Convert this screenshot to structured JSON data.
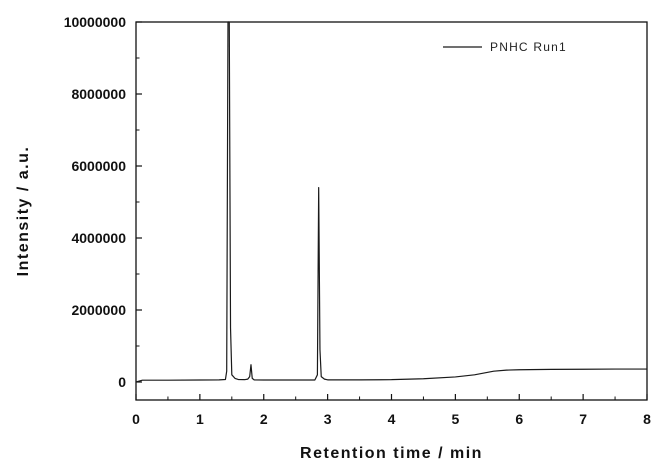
{
  "chart_data": {
    "type": "line",
    "xlabel": "Retention time / min",
    "ylabel": "Intensity / a.u.",
    "xlim": [
      0,
      8
    ],
    "ylim": [
      -500000,
      10000000
    ],
    "x_ticks": [
      0,
      1,
      2,
      3,
      4,
      5,
      6,
      7,
      8
    ],
    "x_tick_labels": [
      "0",
      "1",
      "2",
      "3",
      "4",
      "5",
      "6",
      "7",
      "8"
    ],
    "y_ticks": [
      0,
      2000000,
      4000000,
      6000000,
      8000000,
      10000000
    ],
    "y_tick_labels": [
      "0",
      "2000000",
      "4000000",
      "6000000",
      "8000000",
      "10000000"
    ],
    "grid": false,
    "legend_position": "top-right",
    "series": [
      {
        "name": "PNHC Run1",
        "color": "#1a1a1a",
        "points": [
          [
            0.0,
            0
          ],
          [
            0.1,
            50000
          ],
          [
            0.5,
            50000
          ],
          [
            1.0,
            55000
          ],
          [
            1.3,
            60000
          ],
          [
            1.4,
            70000
          ],
          [
            1.42,
            300000
          ],
          [
            1.44,
            10000000
          ],
          [
            1.46,
            10000000
          ],
          [
            1.48,
            1500000
          ],
          [
            1.5,
            200000
          ],
          [
            1.55,
            100000
          ],
          [
            1.6,
            70000
          ],
          [
            1.7,
            65000
          ],
          [
            1.75,
            80000
          ],
          [
            1.78,
            150000
          ],
          [
            1.8,
            480000
          ],
          [
            1.82,
            100000
          ],
          [
            1.85,
            60000
          ],
          [
            2.0,
            55000
          ],
          [
            2.5,
            55000
          ],
          [
            2.8,
            55000
          ],
          [
            2.84,
            200000
          ],
          [
            2.86,
            5400000
          ],
          [
            2.88,
            900000
          ],
          [
            2.9,
            150000
          ],
          [
            2.95,
            80000
          ],
          [
            3.0,
            60000
          ],
          [
            3.5,
            60000
          ],
          [
            4.0,
            65000
          ],
          [
            4.5,
            90000
          ],
          [
            5.0,
            140000
          ],
          [
            5.3,
            200000
          ],
          [
            5.6,
            300000
          ],
          [
            5.8,
            330000
          ],
          [
            6.0,
            340000
          ],
          [
            6.5,
            350000
          ],
          [
            7.0,
            355000
          ],
          [
            7.5,
            360000
          ],
          [
            8.0,
            360000
          ]
        ]
      }
    ]
  }
}
